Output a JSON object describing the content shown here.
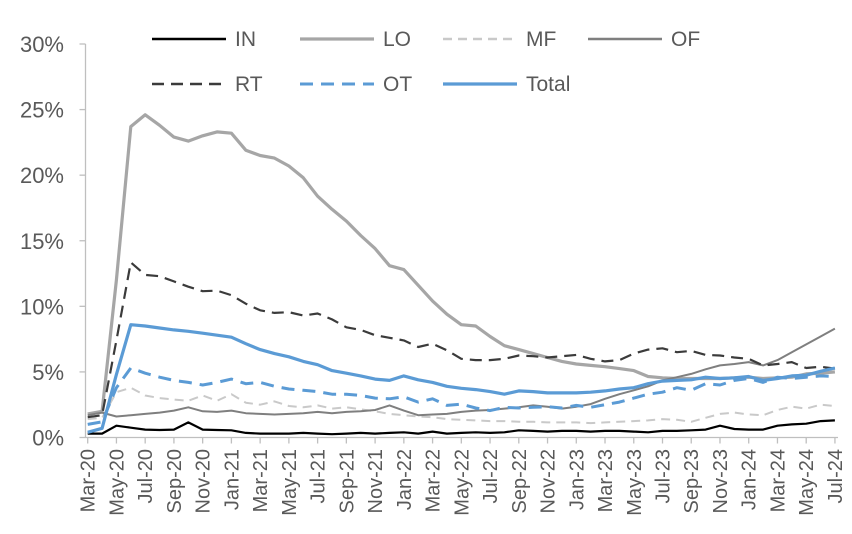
{
  "chart_data": {
    "type": "line",
    "title": "",
    "xlabel": "",
    "ylabel": "",
    "grid": false,
    "legend_position": "top",
    "ylim": [
      0,
      30
    ],
    "y_ticks": [
      "0%",
      "5%",
      "10%",
      "15%",
      "20%",
      "25%",
      "30%"
    ],
    "x": [
      "Mar-20",
      "Apr-20",
      "May-20",
      "Jun-20",
      "Jul-20",
      "Aug-20",
      "Sep-20",
      "Oct-20",
      "Nov-20",
      "Dec-20",
      "Jan-21",
      "Feb-21",
      "Mar-21",
      "Apr-21",
      "May-21",
      "Jun-21",
      "Jul-21",
      "Aug-21",
      "Sep-21",
      "Oct-21",
      "Nov-21",
      "Dec-21",
      "Jan-22",
      "Feb-22",
      "Mar-22",
      "Apr-22",
      "May-22",
      "Jun-22",
      "Jul-22",
      "Aug-22",
      "Sep-22",
      "Oct-22",
      "Nov-22",
      "Dec-22",
      "Jan-23",
      "Feb-23",
      "Mar-23",
      "Apr-23",
      "May-23",
      "Jun-23",
      "Jul-23",
      "Aug-23",
      "Sep-23",
      "Oct-23",
      "Nov-23",
      "Dec-23",
      "Jan-24",
      "Feb-24",
      "Mar-24",
      "Apr-24",
      "May-24",
      "Jun-24",
      "Jul-24"
    ],
    "x_tick_labels": [
      "Mar-20",
      "May-20",
      "Jul-20",
      "Sep-20",
      "Nov-20",
      "Jan-21",
      "Mar-21",
      "May-21",
      "Jul-21",
      "Sep-21",
      "Nov-21",
      "Jan-22",
      "Mar-22",
      "May-22",
      "Jul-22",
      "Sep-22",
      "Nov-22",
      "Jan-23",
      "Mar-23",
      "May-23",
      "Jul-23",
      "Sep-23",
      "Nov-23",
      "Jan-24",
      "Mar-24",
      "May-24",
      "Jul-24"
    ],
    "series": [
      {
        "name": "IN",
        "color": "#000000",
        "style": "solid",
        "width": 2.2,
        "dash": null,
        "values": [
          0.3,
          0.3,
          0.9,
          0.75,
          0.6,
          0.57,
          0.6,
          1.15,
          0.6,
          0.57,
          0.55,
          0.35,
          0.3,
          0.3,
          0.3,
          0.35,
          0.3,
          0.25,
          0.3,
          0.35,
          0.3,
          0.35,
          0.4,
          0.3,
          0.45,
          0.3,
          0.35,
          0.4,
          0.35,
          0.4,
          0.55,
          0.5,
          0.45,
          0.5,
          0.5,
          0.45,
          0.5,
          0.5,
          0.45,
          0.4,
          0.5,
          0.5,
          0.55,
          0.6,
          0.9,
          0.65,
          0.6,
          0.6,
          0.9,
          1.0,
          1.05,
          1.25,
          1.3
        ]
      },
      {
        "name": "LO",
        "color": "#A6A6A6",
        "style": "solid",
        "width": 3.2,
        "dash": null,
        "values": [
          1.8,
          2.0,
          12.0,
          23.7,
          24.6,
          23.8,
          22.9,
          22.6,
          23.0,
          23.3,
          23.2,
          21.9,
          21.5,
          21.3,
          20.7,
          19.8,
          18.4,
          17.4,
          16.5,
          15.4,
          14.4,
          13.1,
          12.8,
          11.6,
          10.4,
          9.4,
          8.6,
          8.5,
          7.7,
          7.0,
          6.7,
          6.4,
          6.1,
          5.8,
          5.6,
          5.5,
          5.4,
          5.25,
          5.1,
          4.65,
          4.55,
          4.5,
          4.5,
          4.5,
          4.5,
          4.55,
          4.6,
          4.5,
          4.55,
          4.6,
          4.85,
          4.9,
          5.0
        ]
      },
      {
        "name": "MF",
        "color": "#C9C9C9",
        "style": "dashed",
        "width": 2.0,
        "dash": "9 6",
        "values": [
          1.4,
          1.5,
          3.45,
          3.8,
          3.2,
          3.0,
          2.9,
          2.8,
          3.2,
          2.8,
          3.3,
          2.65,
          2.5,
          2.75,
          2.4,
          2.3,
          2.45,
          2.2,
          2.3,
          2.15,
          2.0,
          1.8,
          1.7,
          1.6,
          1.55,
          1.4,
          1.35,
          1.3,
          1.25,
          1.25,
          1.2,
          1.2,
          1.15,
          1.15,
          1.15,
          1.1,
          1.15,
          1.2,
          1.25,
          1.3,
          1.4,
          1.35,
          1.2,
          1.5,
          1.8,
          1.9,
          1.75,
          1.7,
          2.1,
          2.35,
          2.2,
          2.5,
          2.4
        ]
      },
      {
        "name": "OF",
        "color": "#7F7F7F",
        "style": "solid",
        "width": 2.0,
        "dash": null,
        "values": [
          1.7,
          1.9,
          1.6,
          1.7,
          1.8,
          1.9,
          2.05,
          2.3,
          2.0,
          1.95,
          2.05,
          1.85,
          1.8,
          1.75,
          1.8,
          1.85,
          1.95,
          1.85,
          1.95,
          2.0,
          2.1,
          2.45,
          2.05,
          1.7,
          1.75,
          1.8,
          1.95,
          2.05,
          2.1,
          2.2,
          2.3,
          2.45,
          2.35,
          2.2,
          2.35,
          2.55,
          2.95,
          3.3,
          3.6,
          3.9,
          4.35,
          4.6,
          4.85,
          5.2,
          5.5,
          5.6,
          5.75,
          5.5,
          5.9,
          6.5,
          7.1,
          7.7,
          8.3
        ]
      },
      {
        "name": "RT",
        "color": "#3B3B3B",
        "style": "dashed",
        "width": 2.2,
        "dash": "12 7",
        "values": [
          1.55,
          1.7,
          7.4,
          13.35,
          12.4,
          12.3,
          11.9,
          11.5,
          11.15,
          11.2,
          10.85,
          10.2,
          9.7,
          9.5,
          9.55,
          9.3,
          9.45,
          9.0,
          8.4,
          8.2,
          7.8,
          7.6,
          7.4,
          6.9,
          7.15,
          6.65,
          6.0,
          5.9,
          5.9,
          6.0,
          6.25,
          6.2,
          6.1,
          6.2,
          6.3,
          6.0,
          5.8,
          5.9,
          6.4,
          6.7,
          6.8,
          6.5,
          6.6,
          6.3,
          6.25,
          6.1,
          6.0,
          5.5,
          5.6,
          5.75,
          5.3,
          5.4,
          5.25
        ]
      },
      {
        "name": "OT",
        "color": "#5B9BD5",
        "style": "dashed",
        "width": 3.0,
        "dash": "13 8",
        "values": [
          1.0,
          1.2,
          3.8,
          5.3,
          4.9,
          4.6,
          4.35,
          4.2,
          4.0,
          4.2,
          4.45,
          4.1,
          4.2,
          3.9,
          3.7,
          3.6,
          3.5,
          3.3,
          3.3,
          3.2,
          3.0,
          2.95,
          3.1,
          2.7,
          2.95,
          2.45,
          2.55,
          2.25,
          2.05,
          2.3,
          2.25,
          2.3,
          2.35,
          2.25,
          2.45,
          2.3,
          2.5,
          2.7,
          3.0,
          3.3,
          3.45,
          3.8,
          3.6,
          4.1,
          4.0,
          4.35,
          4.5,
          4.2,
          4.6,
          4.5,
          4.6,
          4.7,
          4.65
        ]
      },
      {
        "name": "Total",
        "color": "#5B9BD5",
        "style": "solid",
        "width": 3.2,
        "dash": null,
        "values": [
          0.4,
          0.7,
          4.8,
          8.6,
          8.5,
          8.35,
          8.2,
          8.1,
          7.95,
          7.8,
          7.65,
          7.15,
          6.7,
          6.4,
          6.15,
          5.8,
          5.55,
          5.1,
          4.9,
          4.7,
          4.45,
          4.35,
          4.7,
          4.4,
          4.2,
          3.9,
          3.75,
          3.65,
          3.5,
          3.3,
          3.55,
          3.5,
          3.4,
          3.4,
          3.4,
          3.45,
          3.55,
          3.7,
          3.8,
          4.1,
          4.3,
          4.35,
          4.4,
          4.6,
          4.5,
          4.55,
          4.65,
          4.35,
          4.5,
          4.7,
          4.75,
          5.05,
          5.3
        ]
      }
    ],
    "legend_rows": [
      [
        "IN",
        "LO",
        "MF",
        "OF"
      ],
      [
        "RT",
        "OT",
        "Total"
      ]
    ]
  },
  "colors": {
    "axis_text": "#595959",
    "axis_line": "#BFBFBF",
    "background": "#FFFFFF",
    "accent_blue": "#5B9BD5"
  }
}
